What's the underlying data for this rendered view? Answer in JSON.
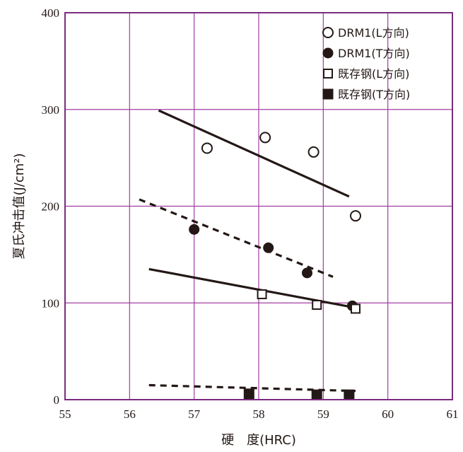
{
  "chart_data": {
    "type": "scatter",
    "xlabel": "硬　度(HRC)",
    "ylabel": "夏氏冲击值(J/cm²)",
    "xlim": [
      55,
      61
    ],
    "ylim": [
      0,
      400
    ],
    "x_ticks": [
      "55",
      "56",
      "57",
      "58",
      "59",
      "60",
      "61"
    ],
    "y_ticks": [
      "0",
      "100",
      "200",
      "300",
      "400"
    ],
    "grid": true,
    "legend_position": "top-right",
    "colors": {
      "grid": "#a23ea0",
      "frame": "#7b2c7f",
      "ink": "#231815"
    },
    "series": [
      {
        "name": "DRM1(L方向)",
        "marker": "open-circle",
        "points": [
          [
            57.2,
            260
          ],
          [
            58.1,
            271
          ],
          [
            58.85,
            256
          ],
          [
            59.5,
            190
          ]
        ]
      },
      {
        "name": "DRM1(T方向)",
        "marker": "filled-circle",
        "points": [
          [
            57.0,
            176
          ],
          [
            58.15,
            157
          ],
          [
            58.75,
            131
          ],
          [
            59.45,
            97
          ]
        ]
      },
      {
        "name": "既存钢(L方向)",
        "marker": "open-square",
        "points": [
          [
            58.05,
            109
          ],
          [
            58.9,
            98
          ],
          [
            59.5,
            94
          ]
        ]
      },
      {
        "name": "既存钢(T方向)",
        "marker": "filled-square",
        "points": [
          [
            57.85,
            6
          ],
          [
            58.9,
            5
          ],
          [
            59.4,
            5
          ]
        ]
      }
    ],
    "trend_lines": [
      {
        "style": "solid",
        "from": [
          56.45,
          299
        ],
        "to": [
          59.4,
          210
        ]
      },
      {
        "style": "dashed",
        "from": [
          56.15,
          207
        ],
        "to": [
          59.15,
          127
        ]
      },
      {
        "style": "solid",
        "from": [
          56.3,
          135
        ],
        "to": [
          59.5,
          95
        ]
      },
      {
        "style": "dashed",
        "from": [
          56.3,
          15
        ],
        "to": [
          59.5,
          9
        ]
      }
    ]
  }
}
